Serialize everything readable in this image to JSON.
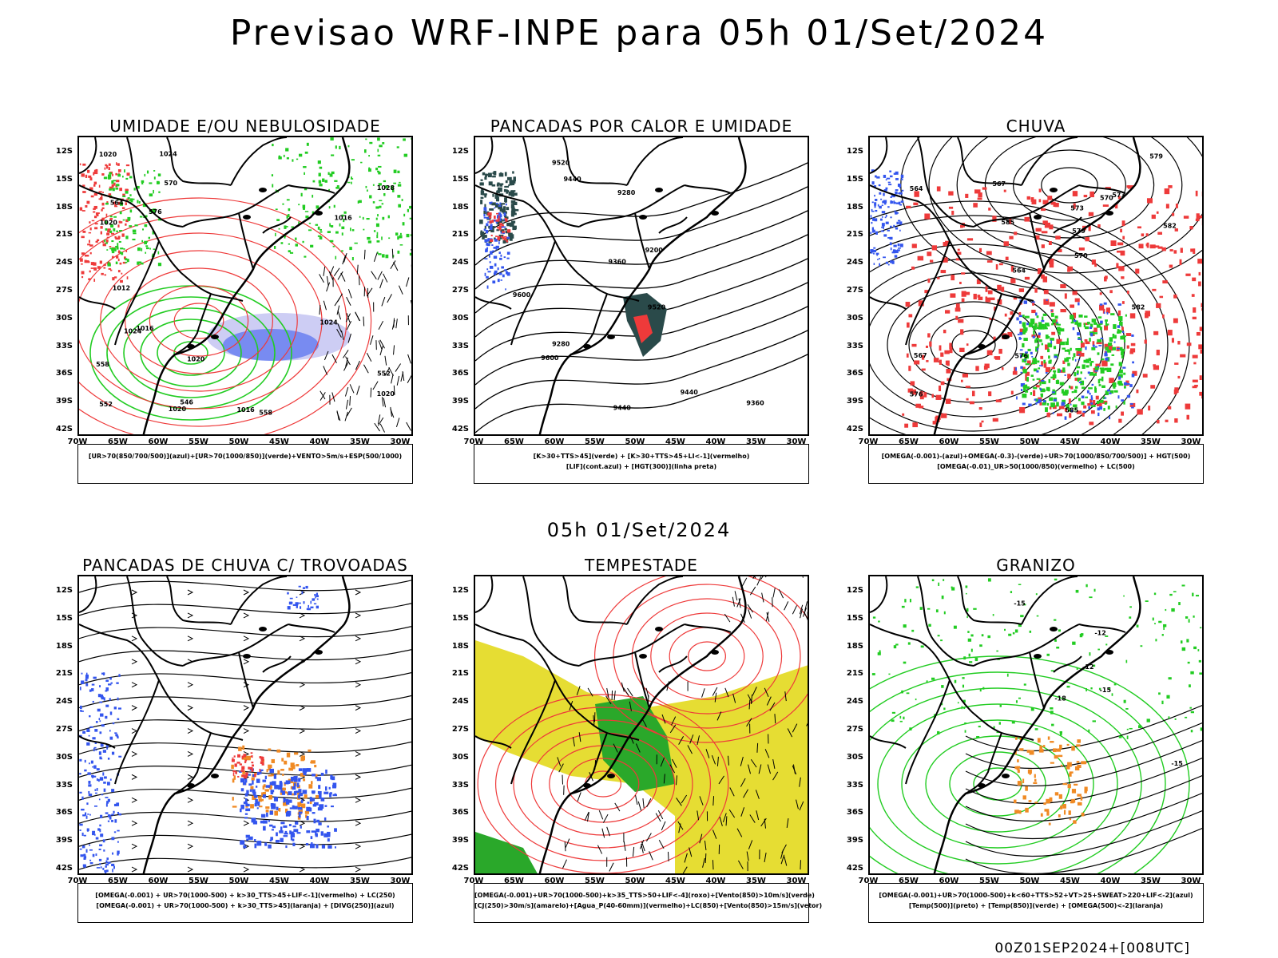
{
  "title": "Previsao WRF-INPE  para 05h 01/Set/2024",
  "mid_title": "05h 01/Set/2024",
  "footer": "00Z01SEP2024+[008UTC]",
  "lat_labels": [
    "12S",
    "15S",
    "18S",
    "21S",
    "24S",
    "27S",
    "30S",
    "33S",
    "36S",
    "39S",
    "42S"
  ],
  "lon_labels": [
    "70W",
    "65W",
    "60W",
    "55W",
    "50W",
    "45W",
    "40W",
    "35W",
    "30W"
  ],
  "colors": {
    "red": "#ee3a3a",
    "green": "#22cc22",
    "blue": "#3355ee",
    "lavender": "#b8b8f0",
    "yellow": "#e6dd33",
    "orange": "#f08a24",
    "darkteal": "#2a4a4a"
  },
  "panels": [
    {
      "id": "umidade",
      "title": "UMIDADE E/OU NEBULOSIDADE",
      "legend": [
        "[UR>70(850/700/500)](azul)+[UR>70(1000/850)](verde)+VENTO>5m/s+ESP(500/1000)"
      ],
      "contour_labels": [
        "1016",
        "1016",
        "1020",
        "1020",
        "1020",
        "1020",
        "1020",
        "1024",
        "1024",
        "1028",
        "1012",
        "1016",
        "1024",
        "570",
        "564",
        "558",
        "552",
        "546",
        "552",
        "558",
        "576"
      ]
    },
    {
      "id": "pancadas-calor",
      "title": "PANCADAS POR CALOR E UMIDADE",
      "legend": [
        "[K>30+TTS>45](verde) + [K>30+TTS>45+LI<-1](vermelho)",
        "[LIF](cont.azul) + [HGT(300)](linha preta)"
      ],
      "contour_labels": [
        "9600",
        "9440",
        "9520",
        "9600",
        "9440",
        "9520",
        "9440",
        "9360",
        "9280",
        "9200",
        "9280",
        "9360"
      ]
    },
    {
      "id": "chuva",
      "title": "CHUVA",
      "legend": [
        "[OMEGA(-0.001)-(azul)+OMEGA(-0.3)-(verde)+UR>70(1000/850/700/500)] + HGT(500)",
        "[OMEGA(-0.01)_UR>50(1000/850)(vermelho) + LC(500)"
      ],
      "contour_labels": [
        "585",
        "585",
        "582",
        "579",
        "576",
        "573",
        "570",
        "567",
        "564",
        "576",
        "573",
        "570",
        "567",
        "564",
        "579",
        "582"
      ]
    },
    {
      "id": "pancadas-trovoadas",
      "title": "PANCADAS DE CHUVA C/ TROVOADAS",
      "legend": [
        "[OMEGA(-0.001) + UR>70(1000-500) + k>30_TTS>45+LIF<-1](vermelho) + LC(250)",
        "[OMEGA(-0.001) + UR>70(1000-500) + k>30_TTS>45](laranja) + [DIVG(250)](azul)"
      ],
      "contour_labels": []
    },
    {
      "id": "tempestade",
      "title": "TEMPESTADE",
      "legend": [
        "[OMEGA(-0.001)+UR>70(1000-500)+k>35_TTS>50+LIF<-4](roxo)+[Vento(850)>10m/s](verde)",
        "[CJ(250)>30m/s](amarelo)+[Agua_P(40-60mm)](vermelho)+LC(850)+[Vento(850)>15m/s](vetor)"
      ],
      "contour_labels": []
    },
    {
      "id": "granizo",
      "title": "GRANIZO",
      "legend": [
        "[OMEGA(-0.001)+UR>70(1000-500)+k<60+TTS>52+VT>25+SWEAT>220+LIF<-2](azul)",
        "[Temp(500)](preto) + [Temp(850)](verde) + [OMEGA(500)<-2](laranja)"
      ],
      "contour_labels": [
        "-15",
        "-12",
        "-15",
        "-12",
        "-18",
        "-15"
      ]
    }
  ]
}
